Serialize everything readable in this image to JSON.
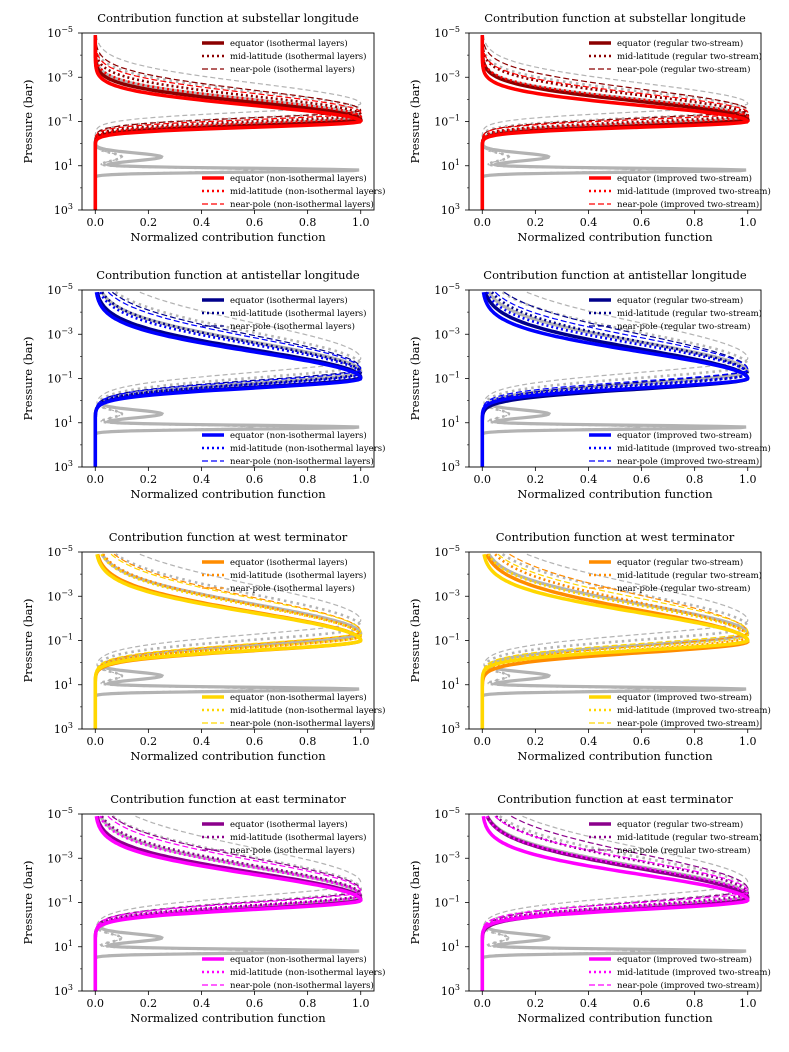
{
  "chart_data": [
    {
      "type": "line",
      "title": "Contribution function at substellar longitude",
      "xlabel": "Normalized contribution function",
      "ylabel": "Pressure (bar)",
      "xlim": [
        -0.05,
        1.05
      ],
      "ylim_log10_pressure": [
        -5,
        3
      ],
      "y_scale": "log",
      "y_inverted": true,
      "x_ticks": [
        "0.0",
        "0.2",
        "0.4",
        "0.6",
        "0.8",
        "1.0"
      ],
      "y_ticks": [
        {
          "base": "10",
          "exp": "−5"
        },
        {
          "base": "10",
          "exp": "−3"
        },
        {
          "base": "10",
          "exp": "−1"
        },
        {
          "base": "10",
          "exp": "1"
        },
        {
          "base": "10",
          "exp": "3"
        }
      ],
      "colors": {
        "dark": "#8b0000",
        "bright": "#ff0000",
        "grey": "#b3b3b3"
      },
      "legend_upper": [
        "equator (isothermal layers)",
        "mid-latitude (isothermal layers)",
        "near-pole (isothermal layers)"
      ],
      "legend_lower": [
        "equator (non-isothermal layers)",
        "mid-latitude (non-isothermal layers)",
        "near-pole (non-isothermal layers)"
      ],
      "profile_params": {
        "dark": [
          -1.1,
          0.38
        ],
        "bright": [
          -1.0,
          0.36
        ],
        "grey": [
          -1.3,
          0.42
        ]
      },
      "bottom_is_bright": true
    },
    {
      "type": "line",
      "title": "Contribution function at substellar longitude",
      "xlabel": "Normalized contribution function",
      "ylabel": "Pressure (bar)",
      "xlim": [
        -0.05,
        1.05
      ],
      "ylim_log10_pressure": [
        -5,
        3
      ],
      "y_scale": "log",
      "y_inverted": true,
      "x_ticks": [
        "0.0",
        "0.2",
        "0.4",
        "0.6",
        "0.8",
        "1.0"
      ],
      "y_ticks": [
        {
          "base": "10",
          "exp": "−5"
        },
        {
          "base": "10",
          "exp": "−3"
        },
        {
          "base": "10",
          "exp": "−1"
        },
        {
          "base": "10",
          "exp": "1"
        },
        {
          "base": "10",
          "exp": "3"
        }
      ],
      "colors": {
        "dark": "#8b0000",
        "bright": "#ff0000",
        "grey": "#b3b3b3"
      },
      "legend_upper": [
        "equator (regular two-stream)",
        "mid-latitude (regular two-stream)",
        "near-pole (regular two-stream)"
      ],
      "legend_lower": [
        "equator (improved two-stream)",
        "mid-latitude (improved two-stream)",
        "near-pole (improved two-stream)"
      ],
      "profile_params": {
        "dark": [
          -1.1,
          0.4
        ],
        "bright": [
          -1.0,
          0.36
        ],
        "grey": [
          -1.3,
          0.42
        ]
      },
      "bottom_is_bright": false
    },
    {
      "type": "line",
      "title": "Contribution function at antistellar longitude",
      "xlabel": "Normalized contribution function",
      "ylabel": "Pressure (bar)",
      "xlim": [
        -0.05,
        1.05
      ],
      "ylim_log10_pressure": [
        -5,
        3
      ],
      "y_scale": "log",
      "y_inverted": true,
      "x_ticks": [
        "0.0",
        "0.2",
        "0.4",
        "0.6",
        "0.8",
        "1.0"
      ],
      "y_ticks": [
        {
          "base": "10",
          "exp": "−5"
        },
        {
          "base": "10",
          "exp": "−3"
        },
        {
          "base": "10",
          "exp": "−1"
        },
        {
          "base": "10",
          "exp": "1"
        },
        {
          "base": "10",
          "exp": "3"
        }
      ],
      "colors": {
        "dark": "#00008b",
        "bright": "#0000ff",
        "grey": "#b3b3b3"
      },
      "legend_upper": [
        "equator (isothermal layers)",
        "mid-latitude (isothermal layers)",
        "near-pole (isothermal layers)"
      ],
      "legend_lower": [
        "equator (non-isothermal layers)",
        "mid-latitude (non-isothermal layers)",
        "near-pole (non-isothermal layers)"
      ],
      "profile_params": {
        "dark": [
          -1.05,
          0.62
        ],
        "bright": [
          -1.0,
          0.6
        ],
        "grey": [
          -1.4,
          0.72
        ]
      },
      "bottom_is_bright": true
    },
    {
      "type": "line",
      "title": "Contribution function at antistellar longitude",
      "xlabel": "Normalized contribution function",
      "ylabel": "Pressure (bar)",
      "xlim": [
        -0.05,
        1.05
      ],
      "ylim_log10_pressure": [
        -5,
        3
      ],
      "y_scale": "log",
      "y_inverted": true,
      "x_ticks": [
        "0.0",
        "0.2",
        "0.4",
        "0.6",
        "0.8",
        "1.0"
      ],
      "y_ticks": [
        {
          "base": "10",
          "exp": "−5"
        },
        {
          "base": "10",
          "exp": "−3"
        },
        {
          "base": "10",
          "exp": "−1"
        },
        {
          "base": "10",
          "exp": "1"
        },
        {
          "base": "10",
          "exp": "3"
        }
      ],
      "colors": {
        "dark": "#00008b",
        "bright": "#0000ff",
        "grey": "#b3b3b3"
      },
      "legend_upper": [
        "equator (regular two-stream)",
        "mid-latitude (regular two-stream)",
        "near-pole (regular two-stream)"
      ],
      "legend_lower": [
        "equator (improved two-stream)",
        "mid-latitude (improved two-stream)",
        "near-pole (improved two-stream)"
      ],
      "profile_params": {
        "dark": [
          -1.0,
          0.66
        ],
        "bright": [
          -1.0,
          0.6
        ],
        "grey": [
          -1.4,
          0.72
        ]
      },
      "bottom_is_bright": false
    },
    {
      "type": "line",
      "title": "Contribution function at west terminator",
      "xlabel": "Normalized contribution function",
      "ylabel": "Pressure (bar)",
      "xlim": [
        -0.05,
        1.05
      ],
      "ylim_log10_pressure": [
        -5,
        3
      ],
      "y_scale": "log",
      "y_inverted": true,
      "x_ticks": [
        "0.0",
        "0.2",
        "0.4",
        "0.6",
        "0.8",
        "1.0"
      ],
      "y_ticks": [
        {
          "base": "10",
          "exp": "−5"
        },
        {
          "base": "10",
          "exp": "−3"
        },
        {
          "base": "10",
          "exp": "−1"
        },
        {
          "base": "10",
          "exp": "1"
        },
        {
          "base": "10",
          "exp": "3"
        }
      ],
      "colors": {
        "dark": "#ff8c00",
        "bright": "#ffd700",
        "grey": "#b3b3b3"
      },
      "legend_upper": [
        "equator (isothermal layers)",
        "mid-latitude (isothermal layers)",
        "near-pole (isothermal layers)"
      ],
      "legend_lower": [
        "equator (non-isothermal layers)",
        "mid-latitude (non-isothermal layers)",
        "near-pole (non-isothermal layers)"
      ],
      "profile_params": {
        "dark": [
          -1.0,
          0.64
        ],
        "bright": [
          -1.0,
          0.62
        ],
        "grey": [
          -1.4,
          0.72
        ]
      },
      "bottom_is_bright": true
    },
    {
      "type": "line",
      "title": "Contribution function at west terminator",
      "xlabel": "Normalized contribution function",
      "ylabel": "Pressure (bar)",
      "xlim": [
        -0.05,
        1.05
      ],
      "ylim_log10_pressure": [
        -5,
        3
      ],
      "y_scale": "log",
      "y_inverted": true,
      "x_ticks": [
        "0.0",
        "0.2",
        "0.4",
        "0.6",
        "0.8",
        "1.0"
      ],
      "y_ticks": [
        {
          "base": "10",
          "exp": "−5"
        },
        {
          "base": "10",
          "exp": "−3"
        },
        {
          "base": "10",
          "exp": "−1"
        },
        {
          "base": "10",
          "exp": "1"
        },
        {
          "base": "10",
          "exp": "3"
        }
      ],
      "colors": {
        "dark": "#ff8c00",
        "bright": "#ffd700",
        "grey": "#b3b3b3"
      },
      "legend_upper": [
        "equator (regular two-stream)",
        "mid-latitude (regular two-stream)",
        "near-pole (regular two-stream)"
      ],
      "legend_lower": [
        "equator (improved two-stream)",
        "mid-latitude (improved two-stream)",
        "near-pole (improved two-stream)"
      ],
      "profile_params": {
        "dark": [
          -0.95,
          0.7
        ],
        "bright": [
          -1.0,
          0.62
        ],
        "grey": [
          -1.4,
          0.72
        ]
      },
      "bottom_is_bright": false
    },
    {
      "type": "line",
      "title": "Contribution function at east terminator",
      "xlabel": "Normalized contribution function",
      "ylabel": "Pressure (bar)",
      "xlim": [
        -0.05,
        1.05
      ],
      "ylim_log10_pressure": [
        -5,
        3
      ],
      "y_scale": "log",
      "y_inverted": true,
      "x_ticks": [
        "0.0",
        "0.2",
        "0.4",
        "0.6",
        "0.8",
        "1.0"
      ],
      "y_ticks": [
        {
          "base": "10",
          "exp": "−5"
        },
        {
          "base": "10",
          "exp": "−3"
        },
        {
          "base": "10",
          "exp": "−1"
        },
        {
          "base": "10",
          "exp": "1"
        },
        {
          "base": "10",
          "exp": "3"
        }
      ],
      "colors": {
        "dark": "#8b008b",
        "bright": "#ff00ff",
        "grey": "#b3b3b3"
      },
      "legend_upper": [
        "equator (isothermal layers)",
        "mid-latitude (isothermal layers)",
        "near-pole (isothermal layers)"
      ],
      "legend_lower": [
        "equator (non-isothermal layers)",
        "mid-latitude (non-isothermal layers)",
        "near-pole (non-isothermal layers)"
      ],
      "profile_params": {
        "dark": [
          -1.15,
          0.6
        ],
        "bright": [
          -1.1,
          0.58
        ],
        "grey": [
          -1.4,
          0.7
        ]
      },
      "bottom_is_bright": true
    },
    {
      "type": "line",
      "title": "Contribution function at east terminator",
      "xlabel": "Normalized contribution function",
      "ylabel": "Pressure (bar)",
      "xlim": [
        -0.05,
        1.05
      ],
      "ylim_log10_pressure": [
        -5,
        3
      ],
      "y_scale": "log",
      "y_inverted": true,
      "x_ticks": [
        "0.0",
        "0.2",
        "0.4",
        "0.6",
        "0.8",
        "1.0"
      ],
      "y_ticks": [
        {
          "base": "10",
          "exp": "−5"
        },
        {
          "base": "10",
          "exp": "−3"
        },
        {
          "base": "10",
          "exp": "−1"
        },
        {
          "base": "10",
          "exp": "1"
        },
        {
          "base": "10",
          "exp": "3"
        }
      ],
      "colors": {
        "dark": "#8b008b",
        "bright": "#ff00ff",
        "grey": "#b3b3b3"
      },
      "legend_upper": [
        "equator (regular two-stream)",
        "mid-latitude (regular two-stream)",
        "near-pole (regular two-stream)"
      ],
      "legend_lower": [
        "equator (improved two-stream)",
        "mid-latitude (improved two-stream)",
        "near-pole (improved two-stream)"
      ],
      "profile_params": {
        "dark": [
          -1.2,
          0.66
        ],
        "bright": [
          -1.1,
          0.58
        ],
        "grey": [
          -1.4,
          0.7
        ]
      },
      "bottom_is_bright": false
    }
  ]
}
